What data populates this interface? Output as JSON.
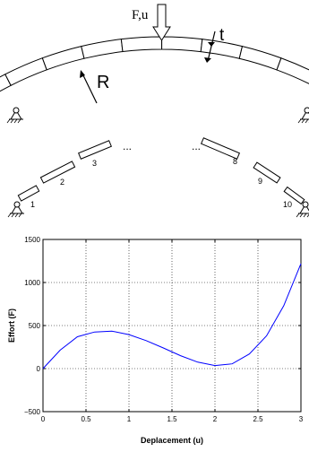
{
  "diagram": {
    "load_label": "F,u",
    "thickness_label": "t",
    "radius_label": "R",
    "ellipsis": "...",
    "element_numbers": [
      "1",
      "2",
      "3",
      "8",
      "9",
      "10"
    ]
  },
  "chart_data": {
    "type": "line",
    "xlabel": "Deplacement (u)",
    "ylabel": "Effort (F)",
    "xlim": [
      0,
      3
    ],
    "ylim": [
      -500,
      1500
    ],
    "xticks": [
      "0",
      "0.5",
      "1",
      "1.5",
      "2",
      "2.5",
      "3"
    ],
    "yticks": [
      "−500",
      "0",
      "500",
      "1000",
      "1500"
    ],
    "grid": true,
    "series": [
      {
        "color": "#0000ff",
        "x": [
          0,
          0.2,
          0.4,
          0.6,
          0.8,
          1.0,
          1.2,
          1.4,
          1.6,
          1.8,
          2.0,
          2.2,
          2.4,
          2.6,
          2.8,
          3.0
        ],
        "y": [
          0,
          215,
          370,
          425,
          435,
          395,
          325,
          240,
          150,
          75,
          35,
          55,
          170,
          380,
          730,
          1220
        ]
      }
    ]
  }
}
